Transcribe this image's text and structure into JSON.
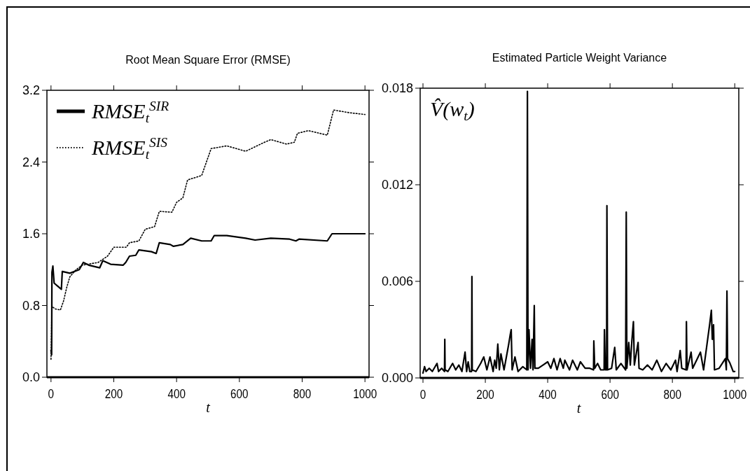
{
  "chart_data": [
    {
      "type": "line",
      "title": "Root Mean Square Error (RMSE)",
      "xlabel": "t",
      "xlim": [
        -13,
        1013
      ],
      "ylim": [
        0,
        3.2
      ],
      "xticks": [
        0,
        200,
        400,
        600,
        800,
        1000
      ],
      "yticks": [
        {
          "value": 0,
          "label": "0.0"
        },
        0.8,
        1.6,
        2.4,
        3.2
      ],
      "legend": "top left",
      "series": [
        {
          "name": "RMSE$_{t}$$^{SIR}$",
          "color": "#000000",
          "line_style": "solid",
          "x": [
            0,
            2,
            3,
            6,
            10,
            20,
            33,
            36,
            60,
            90,
            103,
            120,
            155,
            165,
            190,
            230,
            238,
            250,
            270,
            280,
            320,
            335,
            345,
            380,
            390,
            420,
            445,
            480,
            510,
            520,
            560,
            620,
            650,
            700,
            760,
            780,
            790,
            880,
            895,
            1000
          ],
          "values": [
            0.3,
            0.25,
            1.17,
            1.24,
            1.05,
            1.02,
            0.98,
            1.18,
            1.16,
            1.2,
            1.28,
            1.25,
            1.22,
            1.3,
            1.26,
            1.25,
            1.28,
            1.35,
            1.36,
            1.42,
            1.4,
            1.38,
            1.5,
            1.48,
            1.46,
            1.48,
            1.55,
            1.52,
            1.52,
            1.58,
            1.58,
            1.55,
            1.53,
            1.55,
            1.54,
            1.52,
            1.54,
            1.52,
            1.6,
            1.6
          ]
        },
        {
          "name": "RMSE$_{t}$$^{SIS}$",
          "color": "#000000",
          "line_style": "dotted",
          "x": [
            0,
            3,
            6,
            15,
            30,
            40,
            50,
            60,
            80,
            100,
            150,
            180,
            200,
            240,
            250,
            280,
            300,
            330,
            345,
            385,
            400,
            420,
            435,
            480,
            510,
            560,
            620,
            680,
            700,
            750,
            775,
            785,
            820,
            880,
            900,
            950,
            1000
          ],
          "values": [
            0.2,
            0.8,
            0.78,
            0.76,
            0.75,
            0.85,
            1.0,
            1.12,
            1.2,
            1.25,
            1.28,
            1.35,
            1.45,
            1.45,
            1.5,
            1.52,
            1.65,
            1.68,
            1.85,
            1.84,
            1.95,
            2.0,
            2.2,
            2.25,
            2.55,
            2.58,
            2.52,
            2.62,
            2.65,
            2.6,
            2.62,
            2.72,
            2.75,
            2.7,
            2.98,
            2.95,
            2.93
          ]
        }
      ]
    },
    {
      "type": "line",
      "title": "Estimated Particle Weight Variance",
      "xlabel": "t",
      "xlim": [
        -9,
        1013
      ],
      "ylim": [
        0,
        0.018
      ],
      "xticks": [
        0,
        200,
        400,
        600,
        800,
        1000
      ],
      "yticks": [
        {
          "value": 0,
          "label": "0.000"
        },
        0.006,
        0.012,
        0.018
      ],
      "legend": "top left",
      "series": [
        {
          "name": "V̂(w$_{t}$)",
          "color": "#000000",
          "line_style": "solid",
          "x": [
            0,
            5,
            10,
            20,
            30,
            45,
            50,
            60,
            69,
            70,
            71,
            80,
            95,
            105,
            115,
            125,
            135,
            140,
            145,
            150,
            156,
            157,
            158,
            170,
            185,
            195,
            205,
            215,
            225,
            230,
            235,
            240,
            245,
            250,
            260,
            275,
            280,
            283,
            286,
            295,
            305,
            320,
            333,
            335,
            337,
            340,
            345,
            350,
            353,
            357,
            359,
            370,
            385,
            400,
            410,
            420,
            430,
            440,
            450,
            455,
            470,
            480,
            495,
            505,
            520,
            535,
            547,
            548,
            551,
            560,
            570,
            581,
            582,
            585,
            589,
            590,
            592,
            605,
            615,
            620,
            635,
            650,
            652,
            654,
            660,
            665,
            670,
            675,
            678,
            690,
            693,
            705,
            720,
            735,
            750,
            765,
            780,
            795,
            810,
            815,
            825,
            830,
            844,
            845,
            847,
            860,
            865,
            880,
            890,
            900,
            920,
            925,
            928,
            932,
            935,
            950,
            970,
            973,
            975,
            977,
            985,
            995,
            1000
          ],
          "values": [
            0.0003,
            0.0007,
            0.0004,
            0.0006,
            0.0004,
            0.0009,
            0.0004,
            0.0006,
            0.0004,
            0.0024,
            0.0005,
            0.0004,
            0.0009,
            0.0005,
            0.0008,
            0.0004,
            0.0016,
            0.0004,
            0.001,
            0.0004,
            0.0004,
            0.0063,
            0.0005,
            0.0004,
            0.0009,
            0.0013,
            0.0005,
            0.0013,
            0.0004,
            0.0011,
            0.0006,
            0.0021,
            0.0005,
            0.0015,
            0.0005,
            0.0021,
            0.0027,
            0.003,
            0.0005,
            0.0013,
            0.0004,
            0.0007,
            0.0005,
            0.0178,
            0.0005,
            0.003,
            0.0006,
            0.0024,
            0.0005,
            0.0045,
            0.0006,
            0.0006,
            0.0008,
            0.001,
            0.0006,
            0.0012,
            0.0005,
            0.0012,
            0.0006,
            0.0011,
            0.0005,
            0.0011,
            0.0005,
            0.001,
            0.0006,
            0.0006,
            0.0005,
            0.0023,
            0.0006,
            0.0009,
            0.0005,
            0.0005,
            0.003,
            0.0005,
            0.0005,
            0.0107,
            0.0005,
            0.0006,
            0.0019,
            0.0005,
            0.0009,
            0.0005,
            0.0103,
            0.0006,
            0.0022,
            0.0008,
            0.0023,
            0.0035,
            0.0008,
            0.0022,
            0.0006,
            0.0005,
            0.0008,
            0.0005,
            0.0011,
            0.0004,
            0.0009,
            0.0005,
            0.0011,
            0.0004,
            0.0017,
            0.0006,
            0.0005,
            0.0035,
            0.0005,
            0.0016,
            0.0006,
            0.0012,
            0.0016,
            0.0005,
            0.0034,
            0.0042,
            0.0024,
            0.0033,
            0.0005,
            0.0006,
            0.0012,
            0.0005,
            0.0054,
            0.0012,
            0.0009,
            0.0004,
            0.0004
          ]
        }
      ]
    }
  ]
}
